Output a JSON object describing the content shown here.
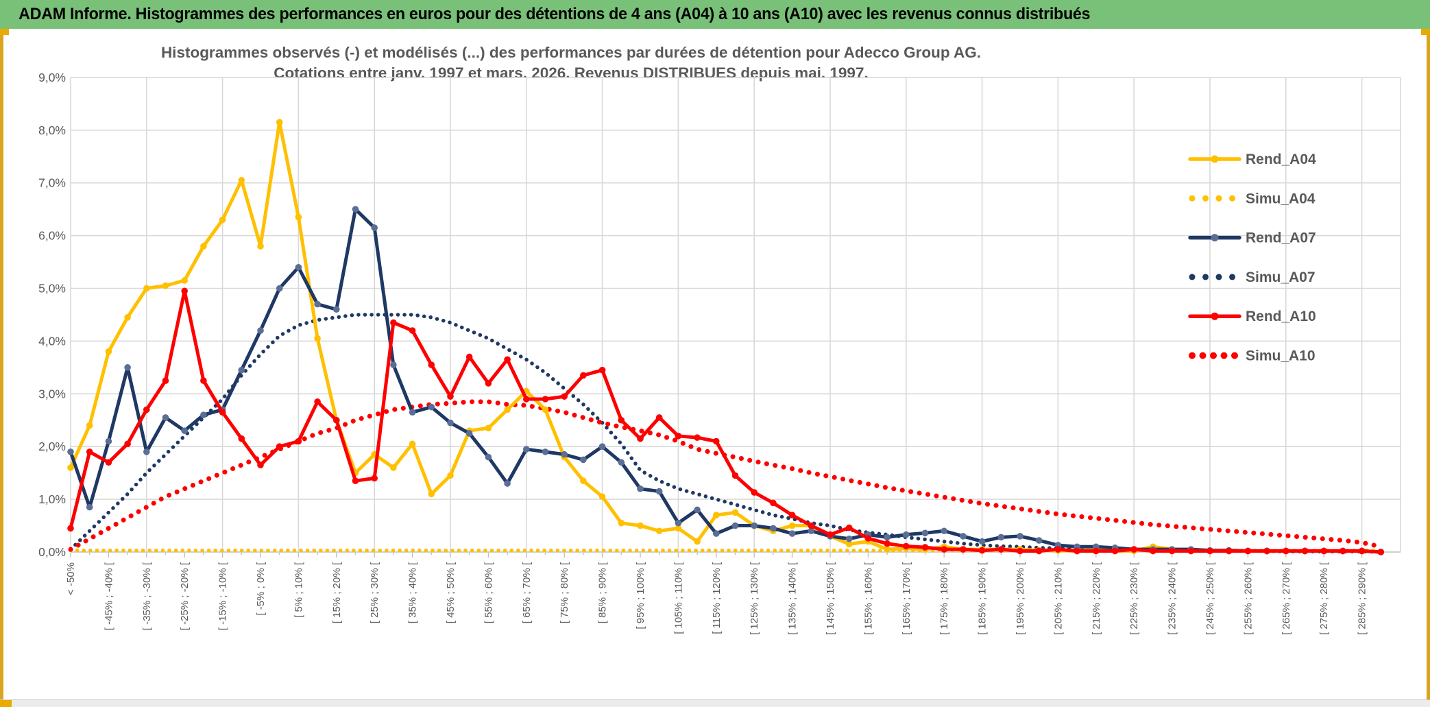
{
  "window": {
    "header_title": "ADAM Informe. Histogrammes des performances en euros pour des détentions de 4 ans (A04) à 10 ans (A10) avec les revenus connus distribués",
    "header_bg": "#79C079",
    "edge_accent_color": "#D9A51F",
    "scrollbar_accent_color": "#EAAA00"
  },
  "chart_data": {
    "type": "line",
    "title_line1": "Histogrammes observés (-) et modélisés (...) des performances par durées de détention pour Adecco Group AG.",
    "title_line2": "Cotations entre janv. 1997 et mars. 2026. Revenus DISTRIBUES depuis mai. 1997.",
    "ylabel": "",
    "xlabel": "",
    "ylim": [
      0,
      9
    ],
    "y_tick_labels": [
      "0,0%",
      "1,0%",
      "2,0%",
      "3,0%",
      "4,0%",
      "5,0%",
      "6,0%",
      "7,0%",
      "8,0%",
      "9,0%"
    ],
    "grid": true,
    "legend_position": "right",
    "categories": [
      "< -50%",
      "[ -45% ; -40% [",
      "[ -35% ; -30% [",
      "[ -25% ; -20% [",
      "[ -15% ; -10% [",
      "[ -5% ; 0% [",
      "[ 5% ; 10% [",
      "[ 15% ; 20% [",
      "[ 25% ; 30% [",
      "[ 35% ; 40% [",
      "[ 45% ; 50% [",
      "[ 55% ; 60% [",
      "[ 65% ; 70% [",
      "[ 75% ; 80% [",
      "[ 85% ; 90% [",
      "[ 95% ; 100% [",
      "[ 105% ; 110% [",
      "[ 115% ; 120% [",
      "[ 125% ; 130% [",
      "[ 135% ; 140% [",
      "[ 145% ; 150% [",
      "[ 155% ; 160% [",
      "[ 165% ; 170% [",
      "[ 175% ; 180% [",
      "[ 185% ; 190% [",
      "[ 195% ; 200% [",
      "[ 205% ; 210% [",
      "[ 215% ; 220% [",
      "[ 225% ; 230% [",
      "[ 235% ; 240% [",
      "[ 245% ; 250% [",
      "[ 255% ; 260% [",
      "[ 265% ; 270% [",
      "[ 275% ; 280% [",
      "[ 285% ; 290% ["
    ],
    "bins_total": 70,
    "labels_every_n_bins": 2,
    "series": [
      {
        "name": "Rend_A04",
        "style": "solid",
        "color": "#FFC000",
        "marker_color": "#FFC000",
        "values": [
          1.6,
          2.4,
          3.8,
          4.45,
          5.0,
          5.05,
          5.15,
          5.8,
          6.3,
          7.05,
          5.8,
          8.15,
          6.35,
          4.05,
          2.5,
          1.5,
          1.85,
          1.6,
          2.05,
          1.1,
          1.45,
          2.3,
          2.35,
          2.7,
          3.05,
          2.7,
          1.8,
          1.35,
          1.05,
          0.55,
          0.5,
          0.4,
          0.45,
          0.2,
          0.7,
          0.75,
          0.5,
          0.4,
          0.5,
          0.5,
          0.3,
          0.15,
          0.2,
          0.05,
          0.07,
          0.05,
          0.1,
          0.05,
          0.05,
          0.05,
          0.05,
          0.03,
          0.03,
          0.02,
          0.05,
          0.02,
          0.02,
          0.1,
          0.05,
          0.02,
          0.02,
          0.02,
          0.02,
          0.02,
          0.02,
          0.02,
          0.02,
          0.02,
          0.02,
          0.0
        ]
      },
      {
        "name": "Simu_A04",
        "style": "dotted",
        "color": "#FFC000",
        "legend_dots": 4,
        "values": [
          0.03,
          0.03,
          0.03,
          0.03,
          0.03,
          0.03,
          0.03,
          0.03,
          0.03,
          0.03,
          0.03,
          0.03,
          0.03,
          0.03,
          0.03,
          0.03,
          0.03,
          0.03,
          0.03,
          0.03,
          0.03,
          0.03,
          0.03,
          0.03,
          0.03,
          0.03,
          0.03,
          0.03,
          0.03,
          0.03,
          0.03,
          0.03,
          0.03,
          0.03,
          0.03,
          0.03,
          0.03,
          0.03,
          0.03,
          0.03,
          0.03,
          0.03,
          0.03,
          0.03,
          0.03,
          0.03,
          0.03,
          0.03,
          0.03,
          0.03,
          0.03,
          0.03,
          0.03,
          0.03,
          0.03,
          0.03,
          0.03,
          0.03,
          0.03,
          0.03,
          0.03,
          0.03,
          0.03,
          0.03,
          0.03,
          0.03,
          0.03,
          0.03,
          0.03,
          0.03
        ]
      },
      {
        "name": "Rend_A07",
        "style": "solid",
        "color": "#1F3864",
        "marker_color": "#5A6E96",
        "values": [
          1.9,
          0.85,
          2.1,
          3.5,
          1.9,
          2.55,
          2.3,
          2.6,
          2.7,
          3.45,
          4.2,
          5.0,
          5.4,
          4.7,
          4.6,
          6.5,
          6.15,
          3.55,
          2.65,
          2.75,
          2.45,
          2.25,
          1.8,
          1.3,
          1.95,
          1.9,
          1.85,
          1.75,
          2.0,
          1.7,
          1.2,
          1.15,
          0.55,
          0.8,
          0.35,
          0.5,
          0.5,
          0.45,
          0.35,
          0.4,
          0.3,
          0.25,
          0.33,
          0.28,
          0.33,
          0.36,
          0.4,
          0.3,
          0.2,
          0.28,
          0.3,
          0.22,
          0.13,
          0.1,
          0.1,
          0.08,
          0.05,
          0.05,
          0.05,
          0.05,
          0.03,
          0.03,
          0.02,
          0.02,
          0.02,
          0.02,
          0.02,
          0.02,
          0.02,
          0.0
        ]
      },
      {
        "name": "Simu_A07",
        "style": "dotted",
        "color": "#1F3864",
        "legend_dots": 4,
        "values": [
          0.05,
          0.4,
          0.75,
          1.1,
          1.5,
          1.85,
          2.2,
          2.55,
          2.9,
          3.35,
          3.75,
          4.1,
          4.3,
          4.4,
          4.45,
          4.5,
          4.5,
          4.5,
          4.5,
          4.45,
          4.35,
          4.2,
          4.05,
          3.85,
          3.65,
          3.4,
          3.1,
          2.8,
          2.45,
          2.05,
          1.55,
          1.35,
          1.2,
          1.1,
          1.0,
          0.9,
          0.8,
          0.7,
          0.63,
          0.55,
          0.5,
          0.42,
          0.37,
          0.33,
          0.28,
          0.24,
          0.2,
          0.16,
          0.13,
          0.11,
          0.1,
          0.08,
          0.07,
          0.06,
          0.05,
          0.05,
          0.04,
          0.04,
          0.03,
          0.03,
          0.02,
          0.02,
          0.02,
          0.02,
          0.01,
          0.01,
          0.01,
          0.01,
          0.01,
          0.0
        ]
      },
      {
        "name": "Rend_A10",
        "style": "solid",
        "color": "#FF0000",
        "marker_color": "#FF0000",
        "values": [
          0.45,
          1.9,
          1.7,
          2.05,
          2.7,
          3.25,
          4.95,
          3.25,
          2.65,
          2.15,
          1.65,
          2.0,
          2.1,
          2.85,
          2.5,
          1.35,
          1.4,
          4.35,
          4.2,
          3.55,
          2.95,
          3.7,
          3.2,
          3.65,
          2.9,
          2.9,
          2.95,
          3.35,
          3.45,
          2.5,
          2.15,
          2.55,
          2.2,
          2.17,
          2.1,
          1.45,
          1.13,
          0.93,
          0.7,
          0.5,
          0.33,
          0.46,
          0.26,
          0.16,
          0.11,
          0.09,
          0.05,
          0.05,
          0.03,
          0.05,
          0.02,
          0.02,
          0.05,
          0.02,
          0.02,
          0.02,
          0.05,
          0.02,
          0.02,
          0.02,
          0.02,
          0.02,
          0.02,
          0.02,
          0.02,
          0.02,
          0.02,
          0.02,
          0.02,
          0.0
        ]
      },
      {
        "name": "Simu_A10",
        "style": "dotted",
        "color": "#FF0000",
        "legend_dots": 5,
        "dot_size": "large",
        "values": [
          0.05,
          0.25,
          0.45,
          0.65,
          0.85,
          1.05,
          1.2,
          1.35,
          1.5,
          1.65,
          1.8,
          1.95,
          2.1,
          2.25,
          2.35,
          2.5,
          2.6,
          2.7,
          2.75,
          2.8,
          2.82,
          2.85,
          2.85,
          2.8,
          2.78,
          2.72,
          2.65,
          2.55,
          2.45,
          2.37,
          2.3,
          2.22,
          2.1,
          1.95,
          1.87,
          1.8,
          1.72,
          1.65,
          1.58,
          1.5,
          1.43,
          1.36,
          1.29,
          1.22,
          1.16,
          1.1,
          1.04,
          0.98,
          0.92,
          0.87,
          0.82,
          0.77,
          0.72,
          0.68,
          0.64,
          0.6,
          0.56,
          0.52,
          0.49,
          0.46,
          0.43,
          0.4,
          0.37,
          0.34,
          0.31,
          0.28,
          0.25,
          0.22,
          0.18,
          0.1
        ]
      }
    ],
    "colors": {
      "grid": "#D9D9D9",
      "axis": "#BFBFBF",
      "text": "#595959"
    }
  }
}
